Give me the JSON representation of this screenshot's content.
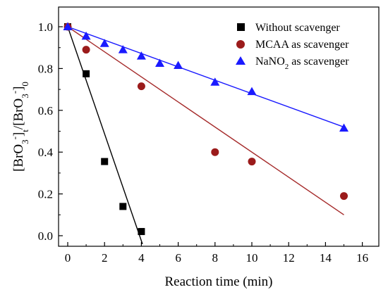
{
  "chart_data": {
    "type": "scatter",
    "xlabel": "Reaction time (min)",
    "ylabel": "[BrO3-]t/[BrO3-]0",
    "xlim": [
      -0.5,
      17
    ],
    "ylim": [
      -0.05,
      1.1
    ],
    "x_ticks": [
      0,
      2,
      4,
      6,
      8,
      10,
      12,
      14,
      16
    ],
    "y_ticks": [
      0.0,
      0.2,
      0.4,
      0.6,
      0.8,
      1.0
    ],
    "x_tick_labels": [
      "0",
      "2",
      "4",
      "6",
      "8",
      "10",
      "12",
      "14",
      "16"
    ],
    "y_tick_labels": [
      "0.0",
      "0.2",
      "0.4",
      "0.6",
      "0.8",
      "1.0"
    ],
    "grid": false,
    "legend_position": "top-right",
    "series": [
      {
        "name": "Without scavenger",
        "marker": "square",
        "color": "#000000",
        "x": [
          0,
          1,
          2,
          3,
          4
        ],
        "y": [
          1.0,
          0.775,
          0.355,
          0.14,
          0.02
        ],
        "fit": {
          "x": [
            0,
            4.06
          ],
          "y": [
            1.0,
            -0.04
          ]
        }
      },
      {
        "name": "MCAA as scavenger",
        "marker": "circle",
        "color": "#9b1b1b",
        "line_color": "#a52a2a",
        "x": [
          0,
          1,
          4,
          8,
          10,
          15
        ],
        "y": [
          1.0,
          0.89,
          0.715,
          0.4,
          0.355,
          0.19
        ],
        "fit": {
          "x": [
            0,
            15
          ],
          "y": [
            1.0,
            0.1
          ]
        }
      },
      {
        "name": "NaNO2 as scavenger",
        "marker": "triangle",
        "color": "#1a1aff",
        "line_color": "#1a1aff",
        "x": [
          0,
          1,
          2,
          3,
          4,
          5,
          6,
          8,
          10,
          15
        ],
        "y": [
          1.0,
          0.955,
          0.92,
          0.89,
          0.86,
          0.825,
          0.815,
          0.735,
          0.69,
          0.515
        ],
        "fit": {
          "x": [
            0,
            15
          ],
          "y": [
            1.0,
            0.52
          ]
        }
      }
    ]
  }
}
